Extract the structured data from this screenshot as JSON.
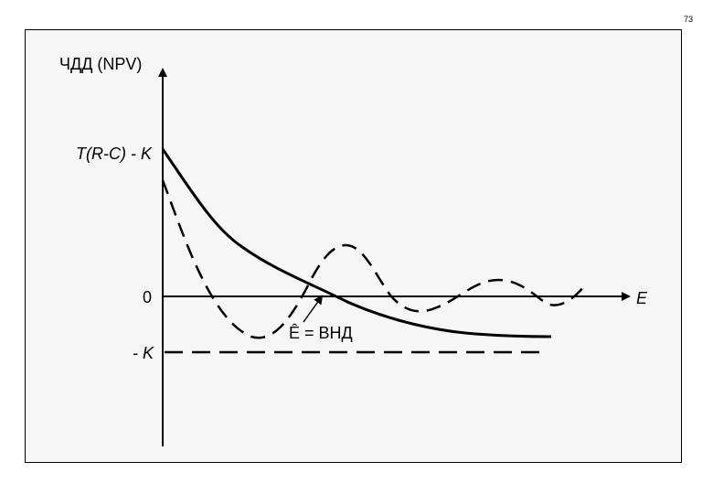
{
  "page": {
    "number": "73"
  },
  "diagram": {
    "y_axis_label": "ЧДД (NPV)",
    "x_axis_label": "E",
    "label_top": "T(R-C) - K",
    "label_zero": "0",
    "label_minus_k": "- K",
    "irr_annotation": "Ê = ВНД"
  }
}
